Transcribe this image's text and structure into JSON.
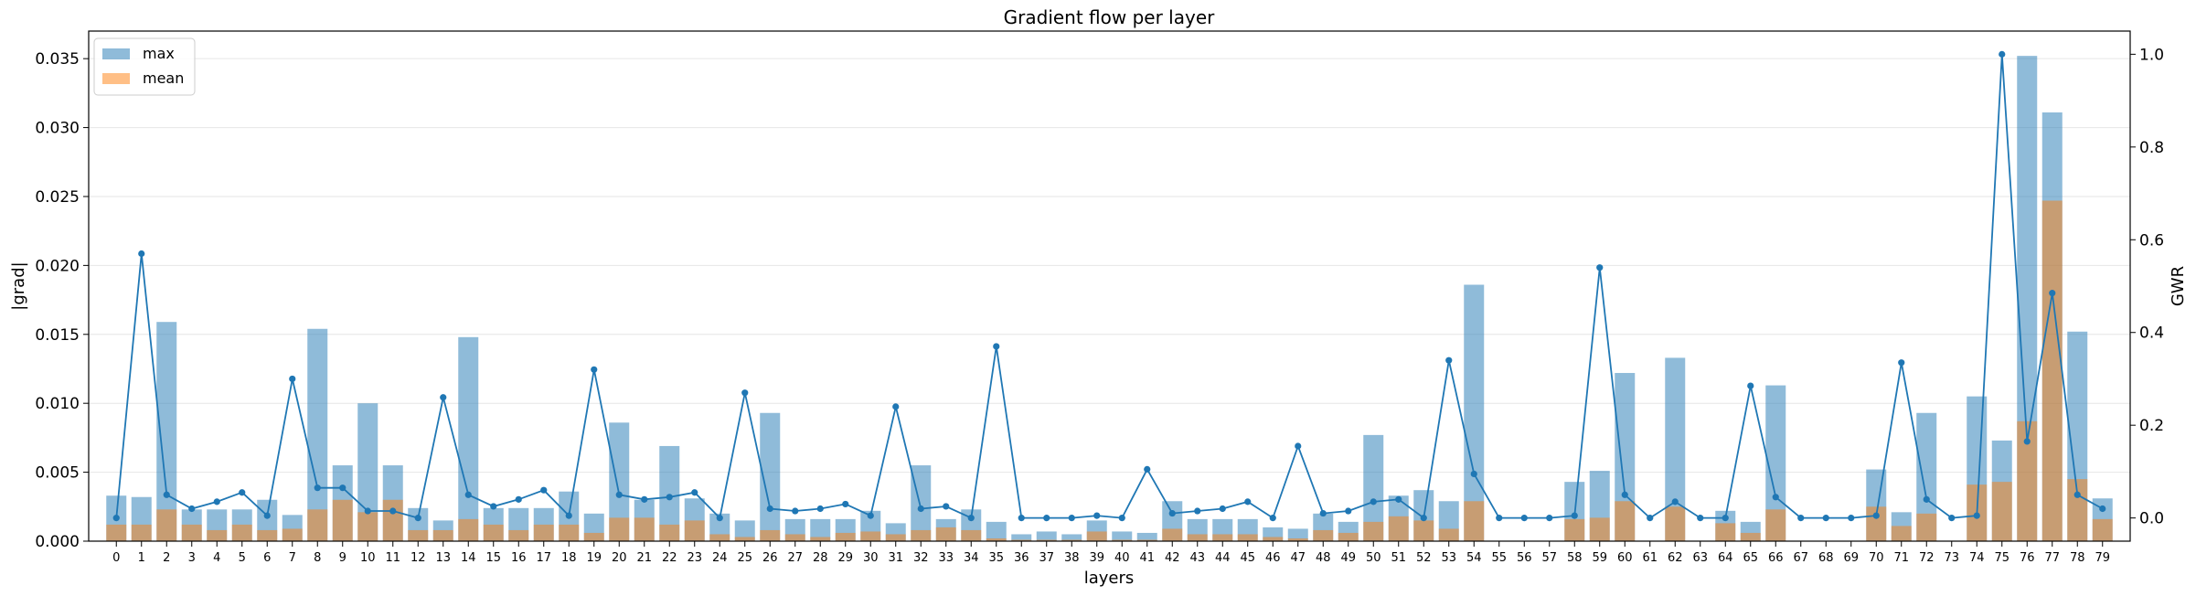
{
  "chart_data": {
    "type": "bar",
    "title": "Gradient flow per layer",
    "xlabel": "layers",
    "ylabel": "|grad|",
    "y2label": "GWR",
    "ylim": [
      0,
      0.037
    ],
    "y2lim": [
      -0.05,
      1.05
    ],
    "yticks": [
      "0.000",
      "0.005",
      "0.010",
      "0.015",
      "0.020",
      "0.025",
      "0.030",
      "0.035"
    ],
    "y2ticks": [
      "0.0",
      "0.2",
      "0.4",
      "0.6",
      "0.8",
      "1.0"
    ],
    "grid": true,
    "legend_position": "top-left",
    "categories": [
      "0",
      "1",
      "2",
      "3",
      "4",
      "5",
      "6",
      "7",
      "8",
      "9",
      "10",
      "11",
      "12",
      "13",
      "14",
      "15",
      "16",
      "17",
      "18",
      "19",
      "20",
      "21",
      "22",
      "23",
      "24",
      "25",
      "26",
      "27",
      "28",
      "29",
      "30",
      "31",
      "32",
      "33",
      "34",
      "35",
      "36",
      "37",
      "38",
      "39",
      "40",
      "41",
      "42",
      "43",
      "44",
      "45",
      "46",
      "47",
      "48",
      "49",
      "50",
      "51",
      "52",
      "53",
      "54",
      "55",
      "56",
      "57",
      "58",
      "59",
      "60",
      "61",
      "62",
      "63",
      "64",
      "65",
      "66",
      "67",
      "68",
      "69",
      "70",
      "71",
      "72",
      "73",
      "74",
      "75",
      "76",
      "77",
      "78",
      "79"
    ],
    "series": [
      {
        "name": "max",
        "kind": "bar",
        "axis": "left",
        "color": "#1f77b4",
        "values": [
          0.0033,
          0.0032,
          0.0159,
          0.0023,
          0.0023,
          0.0023,
          0.003,
          0.0019,
          0.0154,
          0.0055,
          0.01,
          0.0055,
          0.0024,
          0.0015,
          0.0148,
          0.0024,
          0.0024,
          0.0024,
          0.0036,
          0.002,
          0.0086,
          0.003,
          0.0069,
          0.0031,
          0.002,
          0.0015,
          0.0093,
          0.0016,
          0.0016,
          0.0016,
          0.0022,
          0.0013,
          0.0055,
          0.0016,
          0.0023,
          0.0014,
          0.0005,
          0.0007,
          0.0005,
          0.0015,
          0.0007,
          0.0006,
          0.0029,
          0.0016,
          0.0016,
          0.0016,
          0.001,
          0.0009,
          0.002,
          0.0014,
          0.0077,
          0.0033,
          0.0037,
          0.0029,
          0.0186,
          0.0,
          0.0,
          0.0,
          0.0043,
          0.0051,
          0.0122,
          0.0,
          0.0133,
          0.0,
          0.0022,
          0.0014,
          0.0113,
          0.0,
          0.0,
          0.0,
          0.0052,
          0.0021,
          0.0093,
          0.0,
          0.0105,
          0.0073,
          0.0352,
          0.0311,
          0.0152,
          0.0031
        ]
      },
      {
        "name": "mean",
        "kind": "bar",
        "axis": "left",
        "color": "#ff7f0e",
        "values": [
          0.0012,
          0.0012,
          0.0023,
          0.0012,
          0.0008,
          0.0012,
          0.0008,
          0.0009,
          0.0023,
          0.003,
          0.0021,
          0.003,
          0.0008,
          0.0008,
          0.0016,
          0.0012,
          0.0008,
          0.0012,
          0.0012,
          0.0006,
          0.0017,
          0.0017,
          0.0012,
          0.0015,
          0.0005,
          0.0003,
          0.0008,
          0.0005,
          0.0003,
          0.0006,
          0.0007,
          0.0005,
          0.0008,
          0.001,
          0.0008,
          0.0002,
          0.0001,
          0.0001,
          0.0001,
          0.0007,
          0.0001,
          0.0001,
          0.0009,
          0.0005,
          0.0005,
          0.0005,
          0.0003,
          0.0002,
          0.0008,
          0.0006,
          0.0014,
          0.0018,
          0.0015,
          0.0009,
          0.0029,
          0.0,
          0.0,
          0.0,
          0.0016,
          0.0017,
          0.0029,
          0.0,
          0.0025,
          0.0,
          0.0013,
          0.0006,
          0.0023,
          0.0,
          0.0,
          0.0,
          0.0025,
          0.0011,
          0.002,
          0.0,
          0.0041,
          0.0043,
          0.0087,
          0.0247,
          0.0045,
          0.0016
        ]
      },
      {
        "name": "GWR",
        "kind": "line",
        "axis": "right",
        "color": "#1f77b4",
        "values": [
          0.0,
          0.57,
          0.05,
          0.02,
          0.035,
          0.055,
          0.005,
          0.3,
          0.065,
          0.065,
          0.015,
          0.015,
          0.0,
          0.26,
          0.05,
          0.025,
          0.04,
          0.06,
          0.005,
          0.32,
          0.05,
          0.04,
          0.045,
          0.055,
          0.0,
          0.27,
          0.02,
          0.015,
          0.02,
          0.03,
          0.005,
          0.24,
          0.02,
          0.025,
          0.0,
          0.37,
          0.0,
          0.0,
          0.0,
          0.005,
          0.0,
          0.105,
          0.01,
          0.015,
          0.02,
          0.035,
          0.0,
          0.155,
          0.01,
          0.015,
          0.035,
          0.04,
          0.0,
          0.34,
          0.095,
          0.0,
          0.0,
          0.0,
          0.005,
          0.54,
          0.05,
          0.0,
          0.035,
          0.0,
          0.0,
          0.285,
          0.045,
          0.0,
          0.0,
          0.0,
          0.005,
          0.335,
          0.04,
          0.0,
          0.005,
          1.0,
          0.165,
          0.485,
          0.05,
          0.02
        ]
      }
    ]
  }
}
